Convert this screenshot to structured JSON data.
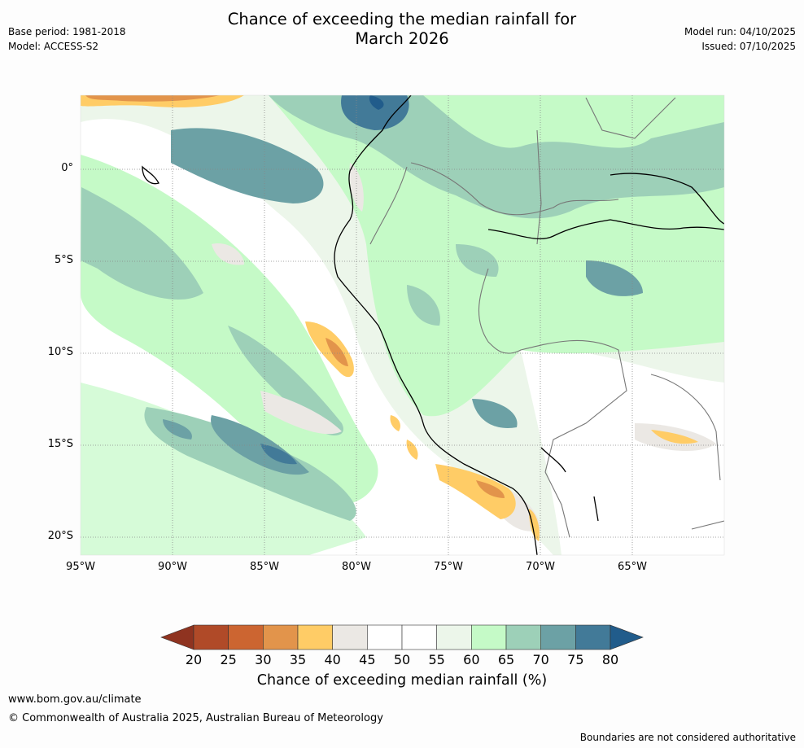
{
  "title_line1": "Chance of exceeding the median rainfall for",
  "title_line2": "March 2026",
  "meta_left": {
    "base_period": "Base period: 1981-2018",
    "model": "Model: ACCESS-S2"
  },
  "meta_right": {
    "model_run": "Model run: 04/10/2025",
    "issued": "Issued: 07/10/2025"
  },
  "map": {
    "lat_labels": [
      "0°",
      "5°S",
      "10°S",
      "15°S",
      "20°S"
    ],
    "lon_labels": [
      "95°W",
      "90°W",
      "85°W",
      "80°W",
      "75°W",
      "70°W",
      "65°W"
    ]
  },
  "colorbar": {
    "ticks": [
      "20",
      "25",
      "30",
      "35",
      "40",
      "45",
      "50",
      "55",
      "60",
      "65",
      "70",
      "75",
      "80"
    ],
    "colors": [
      "#b04a28",
      "#cc6531",
      "#e2944b",
      "#ffcc66",
      "#ebe8e4",
      "#ffffff",
      "#ffffff",
      "#ecf6ea",
      "#c5fac7",
      "#9dd0b8",
      "#6ca1a5",
      "#427a98"
    ],
    "under_color": "#8f3320",
    "over_color": "#215c8b",
    "label": "Chance of exceeding median rainfall (%)"
  },
  "footer": {
    "url": "www.bom.gov.au/climate",
    "copyright": "© Commonwealth of Australia 2025, Australian Bureau of Meteorology",
    "disclaimer": "Boundaries are not considered authoritative"
  }
}
